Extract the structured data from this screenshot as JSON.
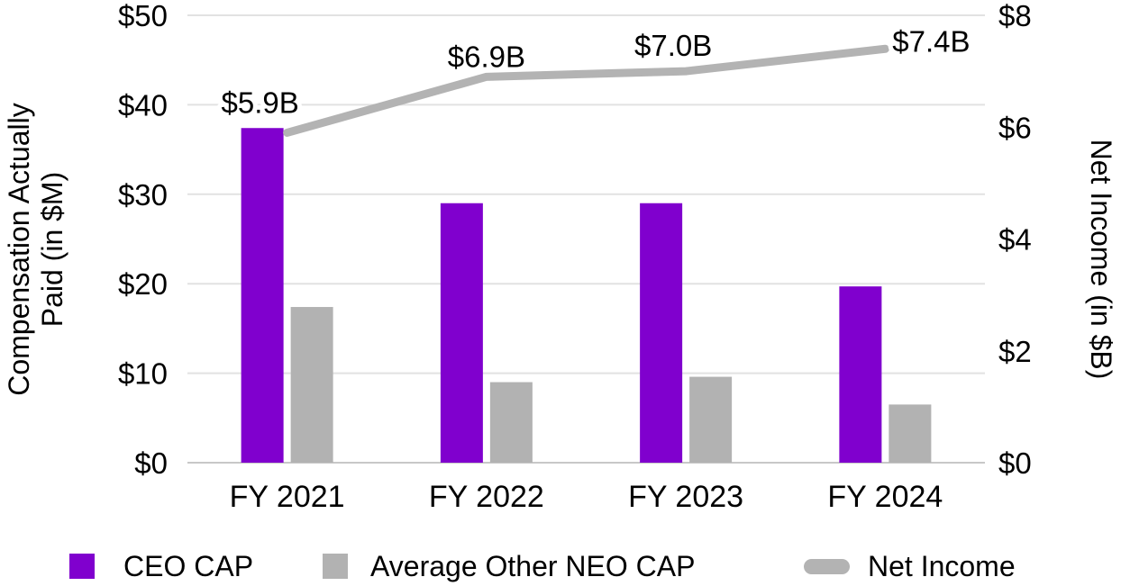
{
  "chart_data": {
    "type": "combo-bar-line",
    "title": "",
    "categories": [
      "FY 2021",
      "FY 2022",
      "FY 2023",
      "FY 2024"
    ],
    "series": [
      {
        "name": "CEO CAP",
        "type": "bar",
        "axis": "left",
        "color": "#8000CE",
        "values": [
          37.4,
          29.0,
          29.0,
          19.7
        ]
      },
      {
        "name": "Average Other NEO CAP",
        "type": "bar",
        "axis": "left",
        "color": "#B2B2B2",
        "values": [
          17.4,
          9.0,
          9.6,
          6.5
        ]
      },
      {
        "name": "Net Income",
        "type": "line",
        "axis": "right",
        "color": "#B3B3B3",
        "values": [
          5.9,
          6.9,
          7.0,
          7.4
        ],
        "point_labels": [
          "$5.9B",
          "$6.9B",
          "$7.0B",
          "$7.4B"
        ]
      }
    ],
    "left_axis": {
      "title": "Compensation Actually Paid (in $M)",
      "title_lines": [
        "Compensation Actually",
        "Paid (in $M)"
      ],
      "min": 0,
      "max": 50,
      "step": 10,
      "tick_labels": [
        "$0",
        "$10",
        "$20",
        "$30",
        "$40",
        "$50"
      ]
    },
    "right_axis": {
      "title": "Net Income (in $B)",
      "min": 0,
      "max": 8,
      "step": 2,
      "tick_labels": [
        "$0",
        "$2",
        "$4",
        "$6",
        "$8"
      ]
    },
    "legend": {
      "position": "bottom",
      "items": [
        "CEO CAP",
        "Average Other NEO CAP",
        "Net Income"
      ]
    },
    "grid": "horizontal"
  },
  "colors": {
    "ceo_cap": "#8000CE",
    "neo_cap": "#B2B2B2",
    "net_income": "#B3B3B3",
    "gridline": "#E2E2E2",
    "axis_line": "#C8C8C8",
    "text": "#000000",
    "background": "#FFFFFF"
  }
}
